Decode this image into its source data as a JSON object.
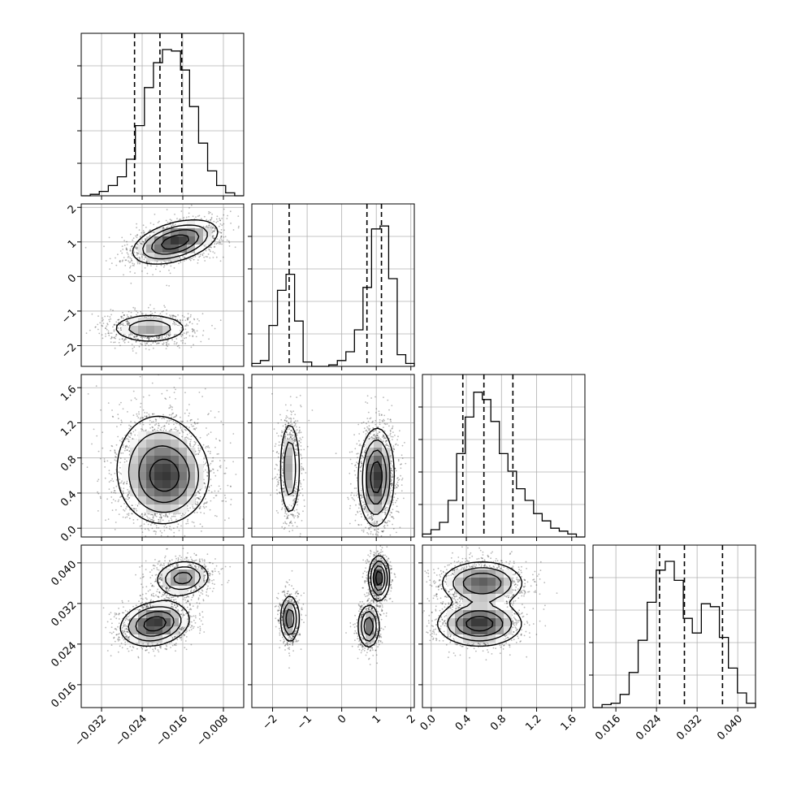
{
  "chart_data": {
    "type": "corner",
    "grid": true,
    "parameters": [
      {
        "range": [
          -0.036,
          -0.004
        ],
        "ticks": [
          -0.032,
          -0.024,
          -0.016,
          -0.008
        ],
        "tick_labels": [
          "−0.032",
          "−0.024",
          "−0.016",
          "−0.008"
        ],
        "quantiles": [
          -0.0255,
          -0.0205,
          -0.0162
        ],
        "hist": [
          0.0,
          0.01,
          0.03,
          0.07,
          0.13,
          0.25,
          0.48,
          0.74,
          0.91,
          1.0,
          0.99,
          0.86,
          0.61,
          0.36,
          0.17,
          0.07,
          0.02,
          0.0
        ]
      },
      {
        "range": [
          -2.6,
          2.1
        ],
        "ticks": [
          -2,
          -1,
          0,
          1,
          2
        ],
        "tick_labels": [
          "−2",
          "−1",
          "0",
          "1",
          "2"
        ],
        "quantiles": [
          -1.52,
          0.73,
          1.15
        ],
        "hist": [
          0.02,
          0.04,
          0.28,
          0.52,
          0.63,
          0.31,
          0.03,
          0.0,
          0.0,
          0.01,
          0.04,
          0.1,
          0.25,
          0.54,
          0.94,
          0.96,
          0.6,
          0.08,
          0.02
        ]
      },
      {
        "range": [
          -0.1,
          1.75
        ],
        "ticks": [
          0.0,
          0.4,
          0.8,
          1.2,
          1.6
        ],
        "tick_labels": [
          "0.0",
          "0.4",
          "0.8",
          "1.2",
          "1.6"
        ],
        "quantiles": [
          0.36,
          0.6,
          0.93
        ],
        "hist": [
          0.02,
          0.05,
          0.1,
          0.25,
          0.57,
          0.82,
          0.99,
          0.94,
          0.79,
          0.57,
          0.45,
          0.33,
          0.25,
          0.16,
          0.11,
          0.06,
          0.04,
          0.02,
          0.0
        ]
      },
      {
        "range": [
          0.0115,
          0.0435
        ],
        "ticks": [
          0.016,
          0.024,
          0.032,
          0.04
        ],
        "tick_labels": [
          "0.016",
          "0.024",
          "0.032",
          "0.040"
        ],
        "quantiles": [
          0.0246,
          0.0295,
          0.037
        ],
        "hist": [
          0.0,
          0.02,
          0.03,
          0.09,
          0.24,
          0.46,
          0.72,
          0.94,
          1.0,
          0.87,
          0.61,
          0.51,
          0.71,
          0.69,
          0.48,
          0.27,
          0.1,
          0.03
        ]
      }
    ],
    "pairs": [
      {
        "row": 1,
        "col": 0,
        "modes": [
          {
            "mean": [
              -0.0175,
              1.0
            ],
            "sd": [
              0.0042,
              0.32
            ],
            "rho": 0.45,
            "weight": 0.65
          },
          {
            "mean": [
              -0.0225,
              -1.5
            ],
            "sd": [
              0.004,
              0.22
            ],
            "rho": 0.0,
            "weight": 0.35
          }
        ]
      },
      {
        "row": 2,
        "col": 0,
        "modes": [
          {
            "mean": [
              -0.019,
              0.55
            ],
            "sd": [
              0.0042,
              0.25
            ],
            "rho": 0.05,
            "weight": 0.6
          },
          {
            "mean": [
              -0.021,
              0.75
            ],
            "sd": [
              0.0048,
              0.34
            ],
            "rho": 0.0,
            "weight": 0.4
          }
        ]
      },
      {
        "row": 2,
        "col": 1,
        "modes": [
          {
            "mean": [
              -1.5,
              0.68
            ],
            "sd": [
              0.16,
              0.3
            ],
            "rho": 0.0,
            "weight": 0.35
          },
          {
            "mean": [
              1.0,
              0.58
            ],
            "sd": [
              0.26,
              0.28
            ],
            "rho": 0.05,
            "weight": 0.65
          }
        ]
      },
      {
        "row": 3,
        "col": 0,
        "modes": [
          {
            "mean": [
              -0.0215,
              0.028
            ],
            "sd": [
              0.0034,
              0.0022
            ],
            "rho": 0.2,
            "weight": 0.6
          },
          {
            "mean": [
              -0.016,
              0.037
            ],
            "sd": [
              0.0028,
              0.0018
            ],
            "rho": 0.1,
            "weight": 0.4
          }
        ]
      },
      {
        "row": 3,
        "col": 1,
        "modes": [
          {
            "mean": [
              -1.5,
              0.029
            ],
            "sd": [
              0.14,
              0.0024
            ],
            "rho": 0.0,
            "weight": 0.3
          },
          {
            "mean": [
              0.78,
              0.0275
            ],
            "sd": [
              0.16,
              0.0022
            ],
            "rho": 0.0,
            "weight": 0.3
          },
          {
            "mean": [
              1.08,
              0.037
            ],
            "sd": [
              0.15,
              0.0022
            ],
            "rho": 0.0,
            "weight": 0.4
          }
        ]
      },
      {
        "row": 3,
        "col": 2,
        "modes": [
          {
            "mean": [
              0.55,
              0.028
            ],
            "sd": [
              0.24,
              0.0022
            ],
            "rho": 0.0,
            "weight": 0.55
          },
          {
            "mean": [
              0.58,
              0.036
            ],
            "sd": [
              0.24,
              0.0022
            ],
            "rho": 0.0,
            "weight": 0.45
          }
        ]
      }
    ]
  }
}
